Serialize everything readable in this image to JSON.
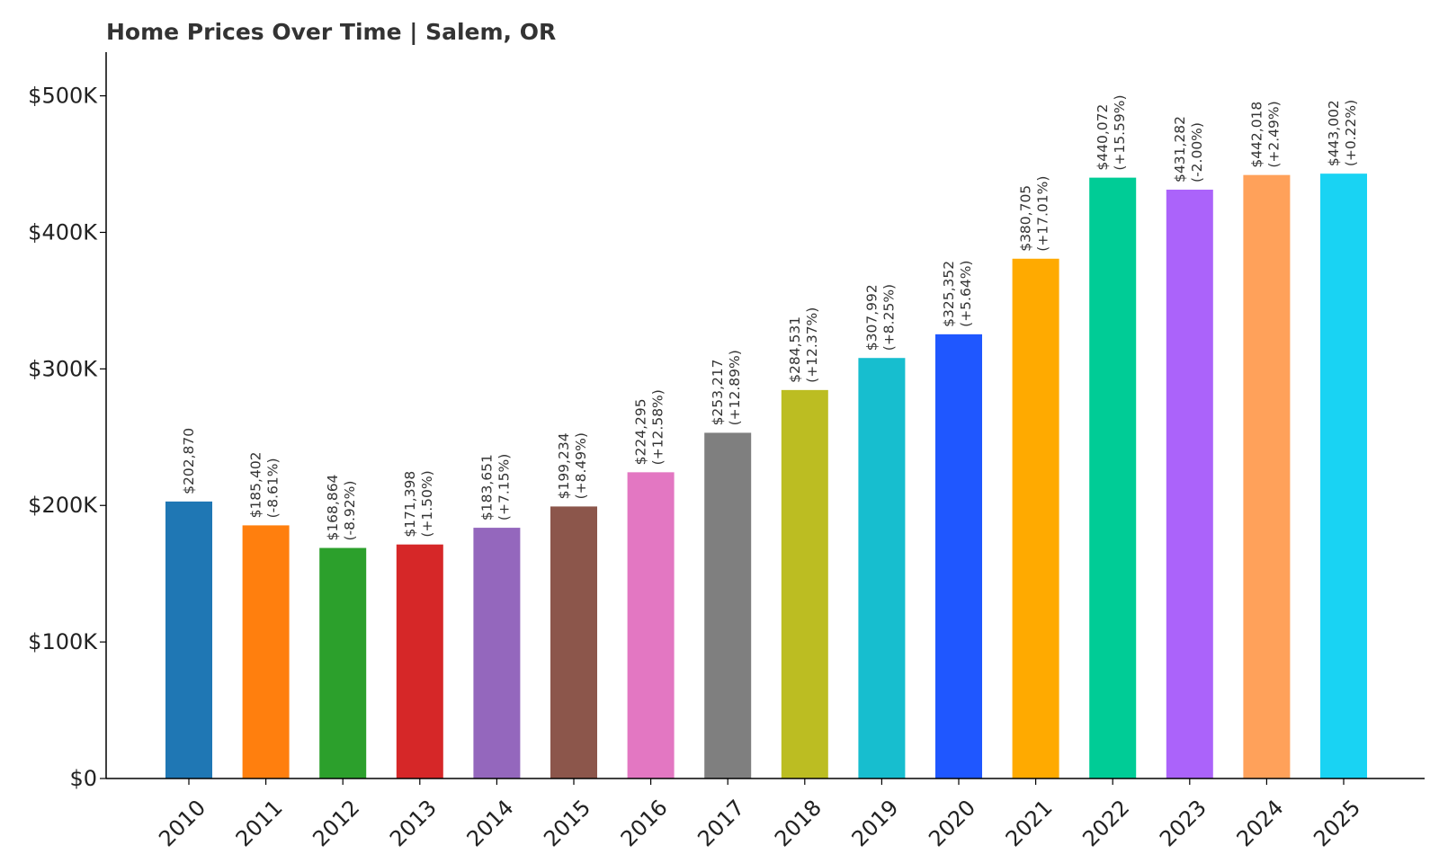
{
  "chart_data": {
    "type": "bar",
    "title": "Home Prices Over Time | Salem, OR",
    "xlabel": "",
    "ylabel": "",
    "ylim": [
      0,
      532000
    ],
    "yticks": [
      {
        "value": 0,
        "label": "$0"
      },
      {
        "value": 100000,
        "label": "$100K"
      },
      {
        "value": 200000,
        "label": "$200K"
      },
      {
        "value": 300000,
        "label": "$300K"
      },
      {
        "value": 400000,
        "label": "$400K"
      },
      {
        "value": 500000,
        "label": "$500K"
      }
    ],
    "grid": false,
    "legend": "none",
    "categories": [
      "2010",
      "2011",
      "2012",
      "2013",
      "2014",
      "2015",
      "2016",
      "2017",
      "2018",
      "2019",
      "2020",
      "2021",
      "2022",
      "2023",
      "2024",
      "2025"
    ],
    "values": [
      202870,
      185402,
      168864,
      171398,
      183651,
      199234,
      224295,
      253217,
      284531,
      307992,
      325352,
      380705,
      440072,
      431282,
      442018,
      443002
    ],
    "value_labels": [
      "$202,870",
      "$185,402",
      "$168,864",
      "$171,398",
      "$183,651",
      "$199,234",
      "$224,295",
      "$253,217",
      "$284,531",
      "$307,992",
      "$325,352",
      "$380,705",
      "$440,072",
      "$431,282",
      "$442,018",
      "$443,002"
    ],
    "change_labels": [
      "",
      "(-8.61%)",
      "(-8.92%)",
      "(+1.50%)",
      "(+7.15%)",
      "(+8.49%)",
      "(+12.58%)",
      "(+12.89%)",
      "(+12.37%)",
      "(+8.25%)",
      "(+5.64%)",
      "(+17.01%)",
      "(+15.59%)",
      "(-2.00%)",
      "(+2.49%)",
      "(+0.22%)"
    ],
    "colors": [
      "#1f77b4",
      "#ff7f0e",
      "#2ca02c",
      "#d62728",
      "#9467bd",
      "#8c564b",
      "#e377c2",
      "#7f7f7f",
      "#bcbd22",
      "#17becf",
      "#1f57ff",
      "#ffaa00",
      "#00cc96",
      "#ab63fa",
      "#ffa15a",
      "#19d3f3"
    ]
  }
}
